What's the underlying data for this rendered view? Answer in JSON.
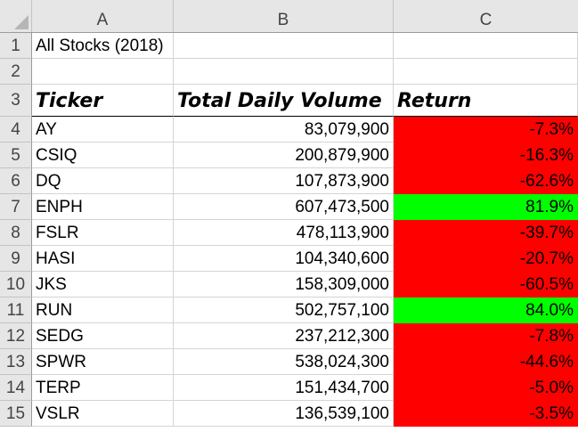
{
  "columns": [
    "A",
    "B",
    "C"
  ],
  "row_numbers": [
    "1",
    "2",
    "3",
    "4",
    "5",
    "6",
    "7",
    "8",
    "9",
    "10",
    "11",
    "12",
    "13",
    "14",
    "15"
  ],
  "title_cell": "All Stocks (2018)",
  "headers": {
    "ticker": "Ticker",
    "volume": "Total Daily Volume",
    "return": "Return"
  },
  "rows": [
    {
      "ticker": "AY",
      "volume": "83,079,900",
      "return": "-7.3%",
      "status": "negative"
    },
    {
      "ticker": "CSIQ",
      "volume": "200,879,900",
      "return": "-16.3%",
      "status": "negative"
    },
    {
      "ticker": "DQ",
      "volume": "107,873,900",
      "return": "-62.6%",
      "status": "negative"
    },
    {
      "ticker": "ENPH",
      "volume": "607,473,500",
      "return": "81.9%",
      "status": "positive"
    },
    {
      "ticker": "FSLR",
      "volume": "478,113,900",
      "return": "-39.7%",
      "status": "negative"
    },
    {
      "ticker": "HASI",
      "volume": "104,340,600",
      "return": "-20.7%",
      "status": "negative"
    },
    {
      "ticker": "JKS",
      "volume": "158,309,000",
      "return": "-60.5%",
      "status": "negative"
    },
    {
      "ticker": "RUN",
      "volume": "502,757,100",
      "return": "84.0%",
      "status": "positive"
    },
    {
      "ticker": "SEDG",
      "volume": "237,212,300",
      "return": "-7.8%",
      "status": "negative"
    },
    {
      "ticker": "SPWR",
      "volume": "538,024,300",
      "return": "-44.6%",
      "status": "negative"
    },
    {
      "ticker": "TERP",
      "volume": "151,434,700",
      "return": "-5.0%",
      "status": "negative"
    },
    {
      "ticker": "VSLR",
      "volume": "136,539,100",
      "return": "-3.5%",
      "status": "negative"
    }
  ],
  "colors": {
    "negative_fill": "#ff0000",
    "positive_fill": "#00ff00",
    "header_bg": "#e6e6e6"
  }
}
